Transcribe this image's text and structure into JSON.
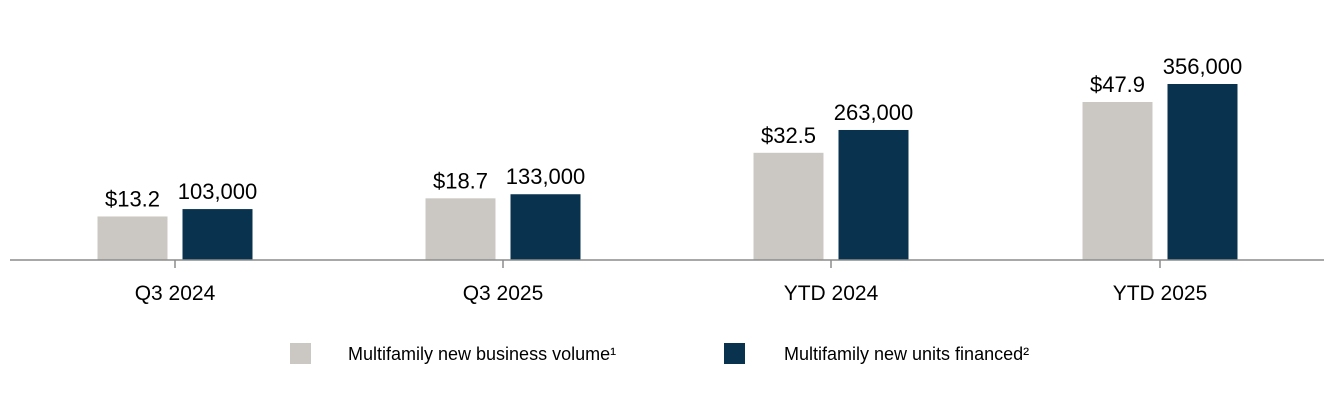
{
  "chart_data": {
    "type": "bar",
    "categories": [
      "Q3 2024",
      "Q3 2025",
      "YTD 2024",
      "YTD 2025"
    ],
    "series": [
      {
        "name": "Multifamily new business volume¹",
        "values": [
          13.2,
          18.7,
          32.5,
          47.9
        ],
        "labels": [
          "$13.2",
          "$18.7",
          "$32.5",
          "$47.9"
        ],
        "color": "#cbc8c4"
      },
      {
        "name": "Multifamily new units financed²",
        "values": [
          103000,
          133000,
          263000,
          356000
        ],
        "labels": [
          "103,000",
          "133,000",
          "263,000",
          "356,000"
        ],
        "color": "#08324e"
      }
    ],
    "title": "",
    "xlabel": "",
    "ylabel": "",
    "grid": false,
    "legend_position": "bottom",
    "axis_color": "#8c8c8c"
  }
}
